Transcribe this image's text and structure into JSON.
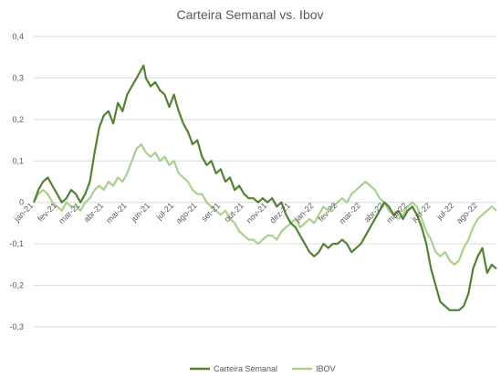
{
  "chart_data": {
    "type": "line",
    "title": "Carteira Semanal vs. Ibov",
    "xlabel": "",
    "ylabel": "",
    "ylim": [
      -0.3,
      0.4
    ],
    "yticks": [
      "0,4",
      "0,3",
      "0,2",
      "0,1",
      "0",
      "-0,1",
      "-0,2",
      "-0,3"
    ],
    "ytick_values": [
      0.4,
      0.3,
      0.2,
      0.1,
      0,
      -0.1,
      -0.2,
      -0.3
    ],
    "grid": true,
    "legend_position": "bottom",
    "categories": [
      "jan-21",
      "fev-21",
      "mar-21",
      "abr-21",
      "mai-21",
      "jun-21",
      "jul-21",
      "ago-21",
      "set-21",
      "out-21",
      "nov-21",
      "dez-21",
      "jan-22",
      "fev-22",
      "mar-22",
      "abr-22",
      "mai-22",
      "jun-22",
      "jul-22",
      "ago-22"
    ],
    "series": [
      {
        "name": "Carteira Semanal",
        "color": "#548235",
        "points": [
          [
            0,
            0
          ],
          [
            0.2,
            0.03
          ],
          [
            0.4,
            0.05
          ],
          [
            0.6,
            0.06
          ],
          [
            0.8,
            0.04
          ],
          [
            1.0,
            0.02
          ],
          [
            1.2,
            0.0
          ],
          [
            1.4,
            0.01
          ],
          [
            1.6,
            0.03
          ],
          [
            1.8,
            0.02
          ],
          [
            2.0,
            0.0
          ],
          [
            2.2,
            0.02
          ],
          [
            2.4,
            0.05
          ],
          [
            2.6,
            0.12
          ],
          [
            2.8,
            0.18
          ],
          [
            3.0,
            0.21
          ],
          [
            3.2,
            0.22
          ],
          [
            3.4,
            0.19
          ],
          [
            3.6,
            0.24
          ],
          [
            3.8,
            0.22
          ],
          [
            4.0,
            0.26
          ],
          [
            4.2,
            0.28
          ],
          [
            4.4,
            0.3
          ],
          [
            4.6,
            0.32
          ],
          [
            4.7,
            0.33
          ],
          [
            4.8,
            0.3
          ],
          [
            5.0,
            0.28
          ],
          [
            5.2,
            0.29
          ],
          [
            5.4,
            0.27
          ],
          [
            5.6,
            0.26
          ],
          [
            5.8,
            0.23
          ],
          [
            6.0,
            0.26
          ],
          [
            6.2,
            0.22
          ],
          [
            6.4,
            0.19
          ],
          [
            6.6,
            0.17
          ],
          [
            6.8,
            0.14
          ],
          [
            7.0,
            0.15
          ],
          [
            7.2,
            0.11
          ],
          [
            7.4,
            0.09
          ],
          [
            7.6,
            0.1
          ],
          [
            7.8,
            0.07
          ],
          [
            8.0,
            0.08
          ],
          [
            8.2,
            0.05
          ],
          [
            8.4,
            0.06
          ],
          [
            8.6,
            0.03
          ],
          [
            8.8,
            0.04
          ],
          [
            9.0,
            0.02
          ],
          [
            9.2,
            0.01
          ],
          [
            9.4,
            0.01
          ],
          [
            9.6,
            0.0
          ],
          [
            9.8,
            0.01
          ],
          [
            10.0,
            0.0
          ],
          [
            10.2,
            0.01
          ],
          [
            10.4,
            -0.01
          ],
          [
            10.6,
            0.0
          ],
          [
            10.8,
            -0.03
          ],
          [
            11.0,
            -0.05
          ],
          [
            11.2,
            -0.06
          ],
          [
            11.4,
            -0.08
          ],
          [
            11.6,
            -0.1
          ],
          [
            11.8,
            -0.12
          ],
          [
            12.0,
            -0.13
          ],
          [
            12.2,
            -0.12
          ],
          [
            12.4,
            -0.1
          ],
          [
            12.6,
            -0.11
          ],
          [
            12.8,
            -0.1
          ],
          [
            13.0,
            -0.1
          ],
          [
            13.2,
            -0.09
          ],
          [
            13.4,
            -0.1
          ],
          [
            13.6,
            -0.12
          ],
          [
            13.8,
            -0.11
          ],
          [
            14.0,
            -0.1
          ],
          [
            14.2,
            -0.08
          ],
          [
            14.4,
            -0.06
          ],
          [
            14.6,
            -0.04
          ],
          [
            14.8,
            -0.02
          ],
          [
            15.0,
            0.0
          ],
          [
            15.2,
            -0.01
          ],
          [
            15.4,
            -0.03
          ],
          [
            15.6,
            -0.02
          ],
          [
            15.8,
            -0.04
          ],
          [
            16.0,
            -0.02
          ],
          [
            16.2,
            -0.01
          ],
          [
            16.4,
            -0.03
          ],
          [
            16.6,
            -0.06
          ],
          [
            16.8,
            -0.1
          ],
          [
            17.0,
            -0.16
          ],
          [
            17.2,
            -0.2
          ],
          [
            17.4,
            -0.24
          ],
          [
            17.6,
            -0.25
          ],
          [
            17.8,
            -0.26
          ],
          [
            18.0,
            -0.26
          ],
          [
            18.2,
            -0.26
          ],
          [
            18.4,
            -0.25
          ],
          [
            18.6,
            -0.22
          ],
          [
            18.8,
            -0.16
          ],
          [
            19.0,
            -0.13
          ],
          [
            19.2,
            -0.11
          ],
          [
            19.4,
            -0.17
          ],
          [
            19.6,
            -0.15
          ],
          [
            19.8,
            -0.16
          ]
        ]
      },
      {
        "name": "IBOV",
        "color": "#a9d18e",
        "points": [
          [
            0,
            0
          ],
          [
            0.2,
            0.02
          ],
          [
            0.4,
            0.03
          ],
          [
            0.6,
            0.02
          ],
          [
            0.8,
            0.0
          ],
          [
            1.0,
            -0.01
          ],
          [
            1.2,
            -0.02
          ],
          [
            1.4,
            0.0
          ],
          [
            1.6,
            -0.01
          ],
          [
            1.8,
            -0.01
          ],
          [
            2.0,
            -0.02
          ],
          [
            2.2,
            0.0
          ],
          [
            2.4,
            0.01
          ],
          [
            2.6,
            0.03
          ],
          [
            2.8,
            0.04
          ],
          [
            3.0,
            0.03
          ],
          [
            3.2,
            0.05
          ],
          [
            3.4,
            0.04
          ],
          [
            3.6,
            0.06
          ],
          [
            3.8,
            0.05
          ],
          [
            4.0,
            0.07
          ],
          [
            4.2,
            0.1
          ],
          [
            4.4,
            0.13
          ],
          [
            4.6,
            0.14
          ],
          [
            4.8,
            0.12
          ],
          [
            5.0,
            0.11
          ],
          [
            5.2,
            0.12
          ],
          [
            5.4,
            0.1
          ],
          [
            5.6,
            0.11
          ],
          [
            5.8,
            0.09
          ],
          [
            6.0,
            0.1
          ],
          [
            6.2,
            0.07
          ],
          [
            6.4,
            0.06
          ],
          [
            6.6,
            0.05
          ],
          [
            6.8,
            0.03
          ],
          [
            7.0,
            0.02
          ],
          [
            7.2,
            0.02
          ],
          [
            7.4,
            0.0
          ],
          [
            7.6,
            -0.01
          ],
          [
            7.8,
            -0.02
          ],
          [
            8.0,
            -0.03
          ],
          [
            8.2,
            -0.02
          ],
          [
            8.4,
            -0.04
          ],
          [
            8.6,
            -0.05
          ],
          [
            8.8,
            -0.07
          ],
          [
            9.0,
            -0.08
          ],
          [
            9.2,
            -0.09
          ],
          [
            9.4,
            -0.09
          ],
          [
            9.6,
            -0.1
          ],
          [
            9.8,
            -0.09
          ],
          [
            10.0,
            -0.08
          ],
          [
            10.2,
            -0.08
          ],
          [
            10.4,
            -0.09
          ],
          [
            10.6,
            -0.07
          ],
          [
            10.8,
            -0.06
          ],
          [
            11.0,
            -0.05
          ],
          [
            11.2,
            -0.04
          ],
          [
            11.4,
            -0.06
          ],
          [
            11.6,
            -0.05
          ],
          [
            11.8,
            -0.04
          ],
          [
            12.0,
            -0.05
          ],
          [
            12.2,
            -0.03
          ],
          [
            12.4,
            -0.01
          ],
          [
            12.6,
            -0.02
          ],
          [
            12.8,
            -0.01
          ],
          [
            13.0,
            0.0
          ],
          [
            13.2,
            0.01
          ],
          [
            13.4,
            0.0
          ],
          [
            13.6,
            0.02
          ],
          [
            13.8,
            0.03
          ],
          [
            14.0,
            0.04
          ],
          [
            14.2,
            0.05
          ],
          [
            14.4,
            0.04
          ],
          [
            14.6,
            0.03
          ],
          [
            14.8,
            0.01
          ],
          [
            15.0,
            0.0
          ],
          [
            15.2,
            -0.02
          ],
          [
            15.4,
            -0.03
          ],
          [
            15.6,
            -0.04
          ],
          [
            15.8,
            -0.03
          ],
          [
            16.0,
            -0.01
          ],
          [
            16.2,
            0.0
          ],
          [
            16.4,
            -0.01
          ],
          [
            16.6,
            -0.04
          ],
          [
            16.8,
            -0.07
          ],
          [
            17.0,
            -0.09
          ],
          [
            17.2,
            -0.12
          ],
          [
            17.4,
            -0.13
          ],
          [
            17.6,
            -0.12
          ],
          [
            17.8,
            -0.14
          ],
          [
            18.0,
            -0.15
          ],
          [
            18.2,
            -0.14
          ],
          [
            18.4,
            -0.11
          ],
          [
            18.6,
            -0.09
          ],
          [
            18.8,
            -0.06
          ],
          [
            19.0,
            -0.04
          ],
          [
            19.2,
            -0.03
          ],
          [
            19.4,
            -0.02
          ],
          [
            19.6,
            -0.01
          ],
          [
            19.8,
            -0.02
          ]
        ]
      }
    ]
  }
}
